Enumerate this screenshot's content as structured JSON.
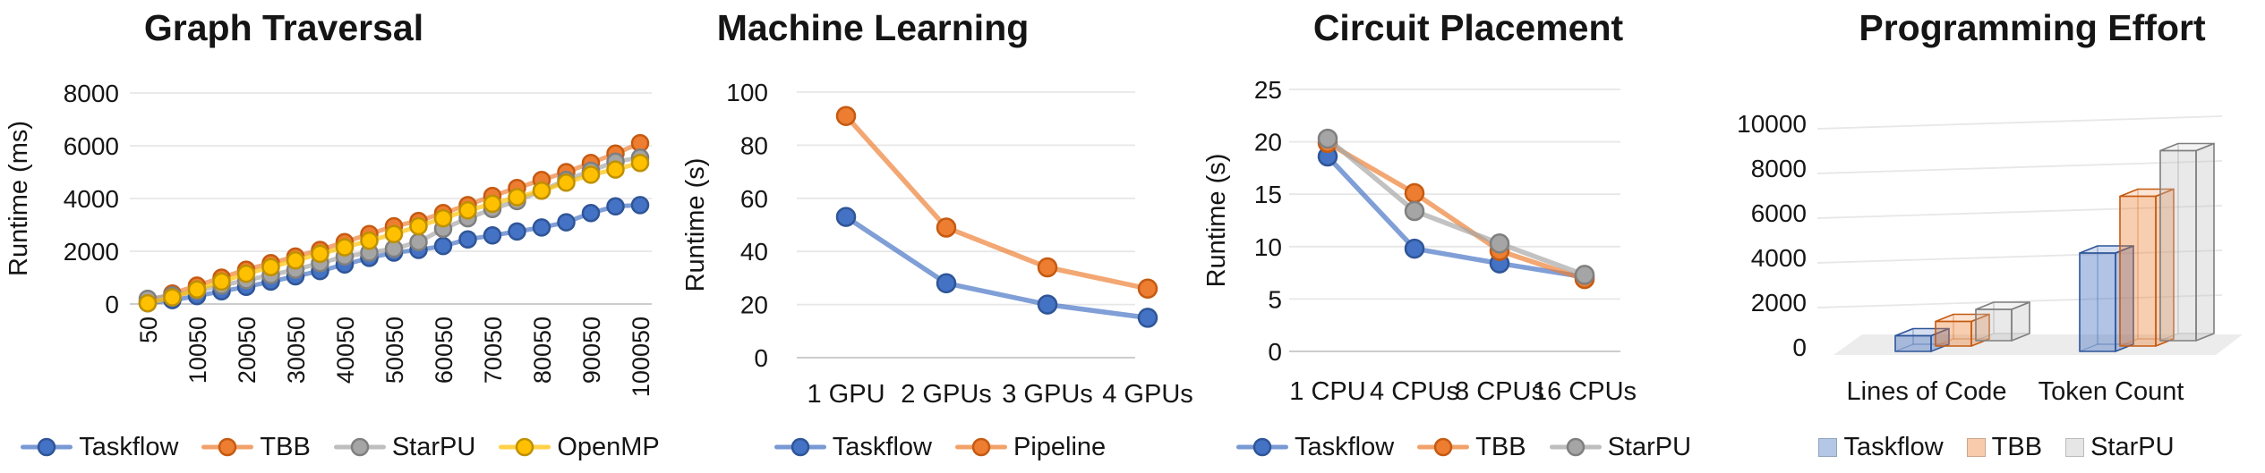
{
  "background": "#FFFFFF",
  "text_color": "#151515",
  "grid_color": "#E7E7E7",
  "axis_line_color": "#C6C6C6",
  "chart_data": [
    {
      "type": "line",
      "title": "Graph Traversal",
      "ylabel": "Runtime (ms)",
      "ylim": [
        0,
        8000
      ],
      "yticks": [
        0,
        2000,
        4000,
        6000,
        8000
      ],
      "grid": true,
      "legend_position": "bottom",
      "x": [
        50,
        5050,
        10050,
        15050,
        20050,
        25050,
        30050,
        35050,
        40050,
        45050,
        50050,
        55050,
        60050,
        65050,
        70050,
        75050,
        80050,
        85050,
        90050,
        95050,
        100050
      ],
      "xtick_labels": [
        "50",
        "10050",
        "20050",
        "30050",
        "40050",
        "50050",
        "60050",
        "70050",
        "80050",
        "90050",
        "100050"
      ],
      "series": [
        {
          "name": "Taskflow",
          "color": "#4472C4",
          "edge": "#2F5597",
          "values": [
            30,
            150,
            300,
            480,
            650,
            850,
            1050,
            1250,
            1500,
            1750,
            1950,
            2050,
            2200,
            2450,
            2600,
            2750,
            2900,
            3100,
            3450,
            3700,
            3750
          ]
        },
        {
          "name": "TBB",
          "color": "#ED7D31",
          "edge": "#C55A11",
          "values": [
            100,
            400,
            700,
            1000,
            1300,
            1550,
            1800,
            2050,
            2350,
            2650,
            2950,
            3150,
            3450,
            3750,
            4100,
            4400,
            4700,
            5000,
            5350,
            5700,
            6100
          ]
        },
        {
          "name": "StarPU",
          "color": "#A5A5A5",
          "edge": "#7F7F7F",
          "values": [
            200,
            330,
            500,
            700,
            900,
            1100,
            1300,
            1550,
            1800,
            1950,
            2100,
            2350,
            2850,
            3250,
            3600,
            3900,
            4300,
            4700,
            5050,
            5400,
            5550
          ]
        },
        {
          "name": "OpenMP",
          "color": "#FFC000",
          "edge": "#BF9000",
          "values": [
            30,
            250,
            550,
            850,
            1150,
            1400,
            1650,
            1900,
            2150,
            2400,
            2650,
            2950,
            3250,
            3550,
            3800,
            4050,
            4300,
            4600,
            4900,
            5100,
            5350
          ]
        }
      ]
    },
    {
      "type": "line",
      "title": "Machine Learning",
      "ylabel": "Runtime (s)",
      "ylim": [
        0,
        100
      ],
      "yticks": [
        0,
        20,
        40,
        60,
        80,
        100
      ],
      "grid": true,
      "legend_position": "bottom",
      "categories": [
        "1 GPU",
        "2 GPUs",
        "3 GPUs",
        "4 GPUs"
      ],
      "series": [
        {
          "name": "Taskflow",
          "color": "#4472C4",
          "edge": "#2F5597",
          "values": [
            53,
            28,
            20,
            15
          ]
        },
        {
          "name": "Pipeline",
          "color": "#ED7D31",
          "edge": "#C55A11",
          "values": [
            91,
            49,
            34,
            26
          ]
        }
      ]
    },
    {
      "type": "line",
      "title": "Circuit Placement",
      "ylabel": "Runtime (s)",
      "ylim": [
        0,
        25
      ],
      "yticks": [
        0,
        5,
        10,
        15,
        20,
        25
      ],
      "grid": true,
      "legend_position": "bottom",
      "categories": [
        "1 CPU",
        "4 CPUs",
        "8 CPUs",
        "16 CPUs"
      ],
      "series": [
        {
          "name": "Taskflow",
          "color": "#4472C4",
          "edge": "#2F5597",
          "values": [
            18.6,
            9.8,
            8.4,
            7.1
          ]
        },
        {
          "name": "TBB",
          "color": "#ED7D31",
          "edge": "#C55A11",
          "values": [
            19.9,
            15.1,
            9.6,
            6.9
          ]
        },
        {
          "name": "StarPU",
          "color": "#A5A5A5",
          "edge": "#7F7F7F",
          "values": [
            20.3,
            13.4,
            10.3,
            7.3
          ]
        }
      ]
    },
    {
      "type": "bar3d",
      "title": "Programming Effort",
      "ylim": [
        0,
        10000
      ],
      "yticks": [
        0,
        2000,
        4000,
        6000,
        8000,
        10000
      ],
      "grid": true,
      "legend_position": "bottom",
      "categories": [
        "Lines of Code",
        "Token Count"
      ],
      "series": [
        {
          "name": "Taskflow",
          "color": "#4472C4",
          "edge": "#2F5597",
          "fill": "rgba(68,114,196,0.42)",
          "legend_fill": "#B4C7E7",
          "values": [
            700,
            4400
          ]
        },
        {
          "name": "TBB",
          "color": "#ED7D31",
          "edge": "#C55A11",
          "fill": "rgba(237,125,49,0.38)",
          "legend_fill": "#F8CBAD",
          "values": [
            1100,
            6700
          ]
        },
        {
          "name": "StarPU",
          "color": "#A5A5A5",
          "edge": "#7F7F7F",
          "fill": "rgba(191,191,191,0.35)",
          "legend_fill": "#E7E6E6",
          "values": [
            1400,
            8500
          ]
        }
      ]
    }
  ]
}
